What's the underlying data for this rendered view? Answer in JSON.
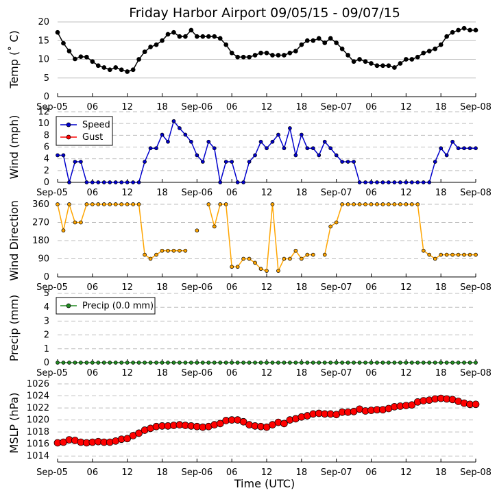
{
  "chart_data": {
    "title": "Friday Harbor Airport 09/05/15 - 09/07/15",
    "xlabel": "Time (UTC)",
    "x_tick_labels": [
      "Sep-05",
      "06",
      "12",
      "18",
      "Sep-06",
      "06",
      "12",
      "18",
      "Sep-07",
      "06",
      "12",
      "18",
      "Sep-08"
    ],
    "x_unit": "hours since 2015-09-05 00:00 UTC",
    "xlim": [
      0,
      72
    ],
    "panels": [
      {
        "id": "temp",
        "type": "line",
        "ylabel": "Temp (˚ C)",
        "ylim": [
          0,
          20
        ],
        "yticks": [
          0,
          5,
          10,
          15,
          20
        ],
        "series": [
          {
            "name": "Temp",
            "color": "#000000",
            "x": [
              0,
              1,
              2,
              3,
              4,
              5,
              6,
              7,
              8,
              9,
              10,
              11,
              12,
              13,
              14,
              15,
              16,
              17,
              18,
              19,
              20,
              21,
              22,
              23,
              24,
              25,
              26,
              27,
              28,
              29,
              30,
              31,
              32,
              33,
              34,
              35,
              36,
              37,
              38,
              39,
              40,
              41,
              42,
              43,
              44,
              45,
              46,
              47,
              48,
              49,
              50,
              51,
              52,
              53,
              54,
              55,
              56,
              57,
              58,
              59,
              60,
              61,
              62,
              63,
              64,
              65,
              66,
              67,
              68,
              69,
              70,
              71,
              72
            ],
            "y": [
              17.2,
              14.3,
              12.2,
              10.1,
              10.7,
              10.6,
              9.4,
              8.3,
              7.8,
              7.2,
              7.8,
              7.2,
              6.7,
              7.2,
              10.0,
              12.0,
              13.3,
              13.9,
              15.0,
              16.7,
              17.2,
              16.1,
              16.1,
              17.8,
              16.1,
              16.1,
              16.1,
              16.1,
              15.6,
              13.9,
              11.7,
              10.6,
              10.6,
              10.6,
              11.1,
              11.7,
              11.7,
              11.1,
              11.1,
              11.1,
              11.7,
              12.2,
              13.9,
              15.0,
              15.0,
              15.6,
              14.4,
              15.6,
              14.4,
              12.8,
              11.1,
              9.4,
              10.0,
              9.4,
              8.9,
              8.3,
              8.3,
              8.3,
              7.8,
              8.9,
              10.0,
              10.0,
              10.6,
              11.7,
              12.2,
              12.8,
              13.9,
              16.1,
              17.2,
              17.8,
              18.3,
              17.8,
              17.8
            ]
          }
        ]
      },
      {
        "id": "wind_speed",
        "type": "line",
        "ylabel": "Wind (mph)",
        "ylim": [
          0,
          12
        ],
        "yticks": [
          0,
          2,
          4,
          6,
          8,
          10,
          12
        ],
        "legend": "top-left",
        "series": [
          {
            "name": "Speed",
            "color": "#0000cc",
            "x": [
              0,
              1,
              2,
              3,
              4,
              5,
              6,
              7,
              8,
              9,
              10,
              11,
              12,
              13,
              14,
              15,
              16,
              17,
              18,
              19,
              20,
              21,
              22,
              23,
              24,
              25,
              26,
              27,
              28,
              29,
              30,
              31,
              32,
              33,
              34,
              35,
              36,
              37,
              38,
              39,
              40,
              41,
              42,
              43,
              44,
              45,
              46,
              47,
              48,
              49,
              50,
              51,
              52,
              53,
              54,
              55,
              56,
              57,
              58,
              59,
              60,
              61,
              62,
              63,
              64,
              65,
              66,
              67,
              68,
              69,
              70,
              71,
              72
            ],
            "y": [
              4.6,
              4.6,
              0,
              3.5,
              3.5,
              0,
              0,
              0,
              0,
              0,
              0,
              0,
              0,
              0,
              0,
              3.5,
              5.8,
              5.8,
              8.1,
              6.9,
              10.4,
              9.2,
              8.1,
              6.9,
              4.6,
              3.5,
              6.9,
              5.8,
              0,
              3.5,
              3.5,
              0,
              0,
              3.5,
              4.6,
              6.9,
              5.8,
              6.9,
              8.1,
              5.8,
              9.2,
              4.6,
              8.1,
              5.8,
              5.8,
              4.6,
              6.9,
              5.8,
              4.6,
              3.5,
              3.5,
              3.5,
              0,
              0,
              0,
              0,
              0,
              0,
              0,
              0,
              0,
              0,
              0,
              0,
              0,
              3.5,
              5.8,
              4.6,
              6.9,
              5.8,
              5.8,
              5.8,
              5.8
            ]
          },
          {
            "name": "Gust",
            "color": "#ff0000",
            "x": [],
            "y": []
          }
        ]
      },
      {
        "id": "wind_dir",
        "type": "line",
        "ylabel": "Wind Direction",
        "ylim": [
          0,
          360
        ],
        "yticks": [
          0,
          90,
          180,
          270,
          360
        ],
        "series": [
          {
            "name": "Direction",
            "color": "#ffa500",
            "x": [
              0,
              1,
              2,
              3,
              4,
              5,
              6,
              7,
              8,
              9,
              10,
              11,
              12,
              13,
              14,
              15,
              16,
              17,
              18,
              19,
              20,
              21,
              22,
              23,
              24,
              25,
              26,
              27,
              28,
              29,
              30,
              31,
              32,
              33,
              34,
              35,
              36,
              37,
              38,
              39,
              40,
              41,
              42,
              43,
              44,
              45,
              46,
              47,
              48,
              49,
              50,
              51,
              52,
              53,
              54,
              55,
              56,
              57,
              58,
              59,
              60,
              61,
              62,
              63,
              64,
              65,
              66,
              67,
              68,
              69,
              70,
              71,
              72
            ],
            "y": [
              360,
              230,
              360,
              270,
              270,
              360,
              360,
              360,
              360,
              360,
              360,
              360,
              360,
              360,
              360,
              110,
              90,
              110,
              130,
              130,
              130,
              130,
              130,
              null,
              230,
              null,
              360,
              250,
              360,
              360,
              50,
              50,
              90,
              90,
              70,
              40,
              30,
              360,
              30,
              90,
              90,
              130,
              90,
              110,
              110,
              null,
              110,
              250,
              270,
              360,
              360,
              360,
              360,
              360,
              360,
              360,
              360,
              360,
              360,
              360,
              360,
              360,
              360,
              130,
              110,
              90,
              110,
              110,
              110,
              110,
              110,
              110,
              110
            ]
          }
        ]
      },
      {
        "id": "precip",
        "type": "line",
        "ylabel": "Precip (mm)",
        "ylim": [
          0,
          5
        ],
        "yticks": [
          0,
          1,
          2,
          3,
          4,
          5
        ],
        "legend": "top-left",
        "series": [
          {
            "name": "Precip (0.0 mm)",
            "color": "#228b22",
            "x": [
              0,
              1,
              2,
              3,
              4,
              5,
              6,
              7,
              8,
              9,
              10,
              11,
              12,
              13,
              14,
              15,
              16,
              17,
              18,
              19,
              20,
              21,
              22,
              23,
              24,
              25,
              26,
              27,
              28,
              29,
              30,
              31,
              32,
              33,
              34,
              35,
              36,
              37,
              38,
              39,
              40,
              41,
              42,
              43,
              44,
              45,
              46,
              47,
              48,
              49,
              50,
              51,
              52,
              53,
              54,
              55,
              56,
              57,
              58,
              59,
              60,
              61,
              62,
              63,
              64,
              65,
              66,
              67,
              68,
              69,
              70,
              71,
              72
            ],
            "y": [
              0,
              0,
              0,
              0,
              0,
              0,
              0,
              0,
              0,
              0,
              0,
              0,
              0,
              0,
              0,
              0,
              0,
              0,
              0,
              0,
              0,
              0,
              0,
              0,
              0,
              0,
              0,
              0,
              0,
              0,
              0,
              0,
              0,
              0,
              0,
              0,
              0,
              0,
              0,
              0,
              0,
              0,
              0,
              0,
              0,
              0,
              0,
              0,
              0,
              0,
              0,
              0,
              0,
              0,
              0,
              0,
              0,
              0,
              0,
              0,
              0,
              0,
              0,
              0,
              0,
              0,
              0,
              0,
              0,
              0,
              0,
              0,
              0
            ]
          }
        ]
      },
      {
        "id": "mslp",
        "type": "scatter",
        "ylabel": "MSLP (hPa)",
        "ylim": [
          1013,
          1026
        ],
        "yticks": [
          1014,
          1016,
          1018,
          1020,
          1022,
          1024,
          1026
        ],
        "series": [
          {
            "name": "MSLP",
            "color": "#ff0000",
            "x": [
              0,
              1,
              2,
              3,
              4,
              5,
              6,
              7,
              8,
              9,
              10,
              11,
              12,
              13,
              14,
              15,
              16,
              17,
              18,
              19,
              20,
              21,
              22,
              23,
              24,
              25,
              26,
              27,
              28,
              29,
              30,
              31,
              32,
              33,
              34,
              35,
              36,
              37,
              38,
              39,
              40,
              41,
              42,
              43,
              44,
              45,
              46,
              47,
              48,
              49,
              50,
              51,
              52,
              53,
              54,
              55,
              56,
              57,
              58,
              59,
              60,
              61,
              62,
              63,
              64,
              65,
              66,
              67,
              68,
              69,
              70,
              71,
              72
            ],
            "y": [
              1016.2,
              1016.3,
              1016.7,
              1016.6,
              1016.3,
              1016.2,
              1016.3,
              1016.4,
              1016.3,
              1016.3,
              1016.5,
              1016.8,
              1016.9,
              1017.4,
              1017.8,
              1018.3,
              1018.6,
              1018.9,
              1019.0,
              1019.0,
              1019.1,
              1019.2,
              1019.1,
              1019.0,
              1018.9,
              1018.8,
              1018.9,
              1019.2,
              1019.4,
              1019.9,
              1020.0,
              1020.0,
              1019.7,
              1019.2,
              1019.0,
              1018.9,
              1018.8,
              1019.2,
              1019.6,
              1019.4,
              1020.0,
              1020.2,
              1020.5,
              1020.7,
              1021.0,
              1021.1,
              1021.0,
              1021.0,
              1020.9,
              1021.3,
              1021.3,
              1021.4,
              1021.8,
              1021.5,
              1021.6,
              1021.7,
              1021.7,
              1021.9,
              1022.2,
              1022.3,
              1022.4,
              1022.5,
              1023.0,
              1023.2,
              1023.3,
              1023.5,
              1023.6,
              1023.5,
              1023.4,
              1023.1,
              1022.8,
              1022.6,
              1022.6
            ]
          }
        ]
      }
    ]
  }
}
